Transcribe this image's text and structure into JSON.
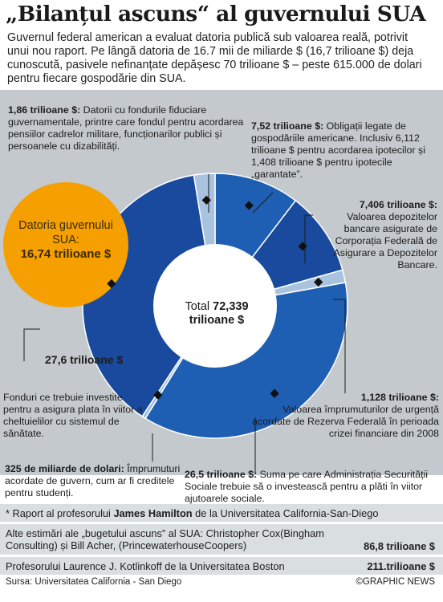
{
  "title": "„Bilanțul ascuns“ al guvernului SUA",
  "intro": "Guvernul federal american a evaluat datoria publică sub valoarea reală, potrivit unui nou raport. Pe lângă datoria de 16.7 mii de miliarde $ (16,7 trilioane $) deja cunoscută, pasivele nefinanțate depășesc 70 trilioane $ – peste 615.000 de dolari pentru fiecare gospodărie din SUA.",
  "total": {
    "prefix": "Total",
    "value": "72,339",
    "unit": "trilioane $"
  },
  "debt_bubble": {
    "label": "Datoria guvernului SUA:",
    "value": "16,74 trilioane $",
    "color": "#f5a000"
  },
  "annotations": {
    "trust_funds": {
      "value": "1,86 trilioane $:",
      "text": "Datorii cu fondurile fiduciare guvernamentale, printre care fondul pentru acordarea pensiilor cadrelor militare, funcționarilor publici și persoanele cu dizabilități."
    },
    "household": {
      "value": "7,52 trilioane $:",
      "text": "Obligații legate de gospodăriile americane. Inclusiv 6,112 trilioane $ pentru acordarea ipotecilor și 1,408 trilioane $ pentru ipotecile „garantate”."
    },
    "fdic": {
      "value": "7,406 trilioane $:",
      "text": "Valoarea depozitelor bancare asigurate de Corporația Federală de Asigurare a Depozitelor Bancare."
    },
    "fed": {
      "value": "1,128 trilioane $:",
      "text": "Valoarea împrumuturilor de urgență acordate de Rezerva Federală în perioada crizei financiare din 2008"
    },
    "health": {
      "value": "27,6 trilioane $",
      "text": "Fonduri ce trebuie investite pentru a asigura plata în viitor a cheltuielilor cu sistemul de sănătate."
    },
    "loans": {
      "value": "325 de miliarde de dolari:",
      "text": "Împrumuturi acordate de guvern, cum ar fi creditele pentru studenți."
    },
    "social_security": {
      "value": "26,5 trilioane $:",
      "text": "Suma pe care Administrația Securității Sociale trebuie să o investească pentru a plăti în viitor ajutoarele sociale."
    }
  },
  "footer": {
    "row1_prefix": "* Raport al profesorului ",
    "row1_name": "James Hamilton",
    "row1_suffix": " de la Universitatea California-San-Diego",
    "row2_text": "Alte estimări ale „bugetului ascuns” al SUA: Christopher Cox(Bingham Consulting) și Bill Acher, (PrincewaterhouseCoopers)",
    "row2_value": "86,8 trilioane $",
    "row3_text": "Profesorului Laurence J. Kotlinkoff de la Universitatea Boston",
    "row3_value": "211.trilioane $",
    "source": "Sursa: Universitatea California - San Diego",
    "credit": "©GRAPHIC NEWS"
  },
  "colors": {
    "panel": "#c3c9cd",
    "dark_blue": "#1a4a9e",
    "mid_blue": "#1f5fb3",
    "light_blue": "#9fbedd",
    "orange": "#f5a000"
  },
  "chart_data": {
    "type": "pie",
    "title": "„Bilanțul ascuns“ al guvernului SUA",
    "total": 72.339,
    "unit": "trilioane $",
    "donut": true,
    "slices": [
      {
        "label": "Obligații legate de gospodăriile americane",
        "value": 7.52,
        "color": "#1f5fb3"
      },
      {
        "label": "Depozite bancare asigurate (FDIC)",
        "value": 7.406,
        "color": "#1a4a9e"
      },
      {
        "label": "Împrumuturi de urgență ale Rezervei Federale",
        "value": 1.128,
        "color": "#a9c3df"
      },
      {
        "label": "Administrația Securității Sociale",
        "value": 26.5,
        "color": "#1f5fb3"
      },
      {
        "label": "Împrumuturi acordate de guvern",
        "value": 0.325,
        "color": "#9fbedd"
      },
      {
        "label": "Sistemul de sănătate",
        "value": 27.6,
        "color": "#1a4a9e"
      },
      {
        "label": "Fonduri fiduciare guvernamentale",
        "value": 1.86,
        "color": "#a9c3df"
      }
    ]
  }
}
